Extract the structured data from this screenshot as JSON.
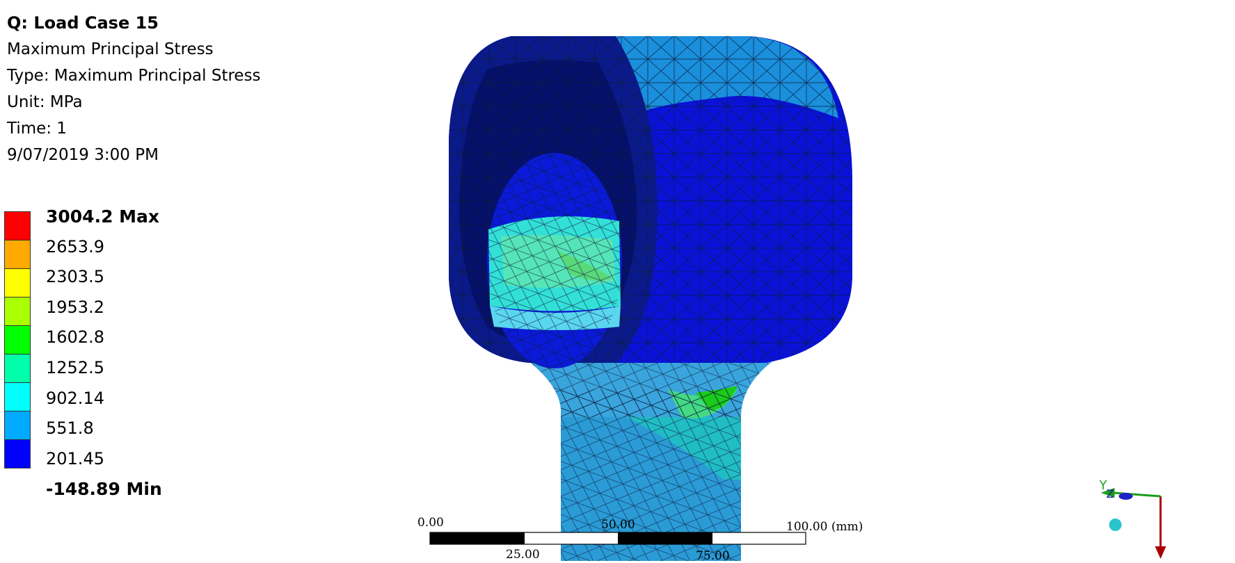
{
  "result": {
    "title": "Q: Load Case 15",
    "name": "Maximum Principal Stress",
    "type": "Type: Maximum Principal Stress",
    "unit": "Unit: MPa",
    "time": "Time: 1",
    "date": "9/07/2019 3:00 PM"
  },
  "legend": {
    "max_label": "3004.2 Max",
    "min_label": "-148.89 Min",
    "levels": [
      "2653.9",
      "2303.5",
      "1953.2",
      "1602.8",
      "1252.5",
      "902.14",
      "551.8",
      "201.45"
    ],
    "colors": [
      "#ff0000",
      "#ffaa00",
      "#ffff00",
      "#aaff00",
      "#00ff00",
      "#00ffaa",
      "#00ffff",
      "#00aaff",
      "#0000ff"
    ]
  },
  "scale_bar": {
    "label_0": "0.00",
    "label_25": "25.00",
    "label_50": "50.00",
    "label_75": "75.00",
    "label_100": "100.00 (mm)"
  },
  "triad": {
    "y_label": "Y",
    "z_label": "Z"
  }
}
